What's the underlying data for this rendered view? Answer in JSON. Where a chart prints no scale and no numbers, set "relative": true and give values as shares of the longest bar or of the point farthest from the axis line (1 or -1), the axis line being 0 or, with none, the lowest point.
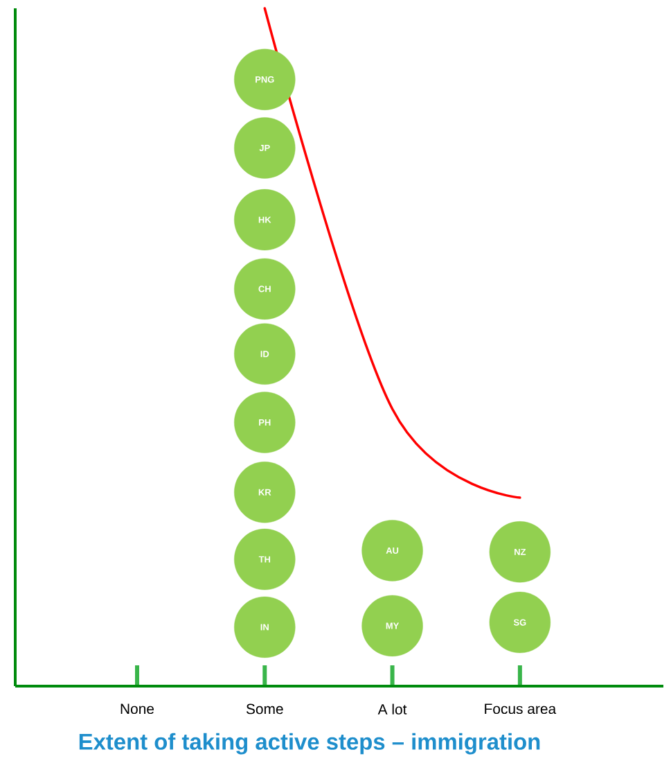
{
  "chart_data": {
    "type": "scatter",
    "relative": true,
    "categories": [
      "None",
      "Some",
      "A lot",
      "Focus area"
    ],
    "xlabel": "Extent of taking active steps – immigration",
    "annotations": [
      {
        "text": "PNG",
        "x": "Some",
        "y": 0.895
      },
      {
        "text": "JP",
        "x": "Some",
        "y": 0.794
      },
      {
        "text": "HK",
        "x": "Some",
        "y": 0.688
      },
      {
        "text": "CH",
        "x": "Some",
        "y": 0.586
      },
      {
        "text": "ID",
        "x": "Some",
        "y": 0.49
      },
      {
        "text": "PH",
        "x": "Some",
        "y": 0.389
      },
      {
        "text": "KR",
        "x": "Some",
        "y": 0.286
      },
      {
        "text": "TH",
        "x": "Some",
        "y": 0.187
      },
      {
        "text": "IN",
        "x": "Some",
        "y": 0.087
      },
      {
        "text": "AU",
        "x": "A lot",
        "y": 0.2
      },
      {
        "text": "MY",
        "x": "A lot",
        "y": 0.089
      },
      {
        "text": "NZ",
        "x": "Focus area",
        "y": 0.198
      },
      {
        "text": "SG",
        "x": "Focus area",
        "y": 0.094
      }
    ],
    "series": [
      {
        "marker": "circle",
        "color": "#92d050",
        "x": [
          "Some",
          "Some",
          "Some",
          "Some",
          "Some",
          "Some",
          "Some",
          "Some",
          "Some",
          "A lot",
          "A lot",
          "Focus area",
          "Focus area"
        ],
        "values": [
          0.895,
          0.794,
          0.688,
          0.586,
          0.49,
          0.389,
          0.286,
          0.187,
          0.087,
          0.2,
          0.089,
          0.198,
          0.094
        ]
      },
      {
        "type": "line",
        "color": "#ff0000",
        "marker": "none",
        "line_style": "solid",
        "values": [
          null,
          1,
          0.409,
          0.278
        ]
      }
    ]
  }
}
